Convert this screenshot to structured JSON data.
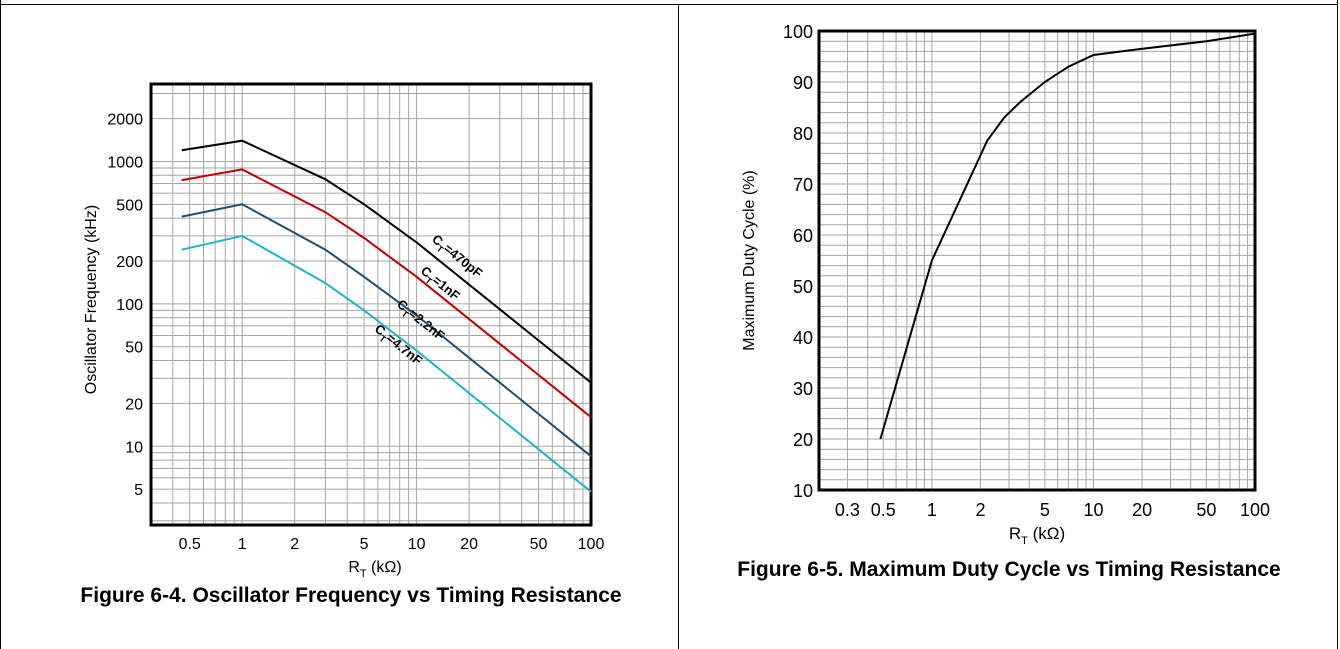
{
  "figures": [
    {
      "caption": "Figure 6-4. Oscillator Frequency vs Timing Resistance",
      "chart_data": {
        "type": "line",
        "x_scale": "log",
        "y_scale": "log",
        "xlim": [
          0.3,
          100
        ],
        "ylim": [
          2.8,
          3500
        ],
        "xticks": [
          0.5,
          1,
          2,
          5,
          10,
          20,
          50,
          100
        ],
        "xtick_labels": [
          "0.5",
          "1",
          "2",
          "5",
          "10",
          "20",
          "50",
          "100"
        ],
        "yticks": [
          5,
          10,
          20,
          50,
          100,
          200,
          500,
          1000,
          2000
        ],
        "ytick_labels": [
          "5",
          "10",
          "20",
          "50",
          "100",
          "200",
          "500",
          "1000",
          "2000"
        ],
        "xlabel": "R",
        "xlabel_sub": "T",
        "xlabel_unit": " (kΩ)",
        "ylabel": "Oscillator Frequency (kHz)",
        "grid": true,
        "series": [
          {
            "name": "CT=470pF",
            "label_prefix": "C",
            "label_sub": "T",
            "label_suffix": "=470pF",
            "color": "#000000",
            "x": [
              0.45,
              1,
              3,
              5,
              10,
              100
            ],
            "y": [
              1200,
              1400,
              750,
              500,
              270,
              28
            ]
          },
          {
            "name": "CT=1nF",
            "label_prefix": "C",
            "label_sub": "T",
            "label_suffix": "=1nF",
            "color": "#c00000",
            "x": [
              0.45,
              1,
              3,
              5,
              10,
              100
            ],
            "y": [
              740,
              880,
              440,
              290,
              155,
              16
            ]
          },
          {
            "name": "CT=2.2nF",
            "label_prefix": "C",
            "label_sub": "T",
            "label_suffix": "=2.2nF",
            "color": "#1f4e6e",
            "x": [
              0.45,
              1,
              3,
              5,
              10,
              100
            ],
            "y": [
              410,
              500,
              240,
              155,
              83,
              8.5
            ]
          },
          {
            "name": "CT=4.7nF",
            "label_prefix": "C",
            "label_sub": "T",
            "label_suffix": "=4.7nF",
            "color": "#1fb4c8",
            "x": [
              0.45,
              1,
              3,
              5,
              10,
              100
            ],
            "y": [
              240,
              300,
              140,
              90,
              47,
              4.8
            ]
          }
        ]
      }
    },
    {
      "caption": "Figure 6-5. Maximum Duty Cycle vs Timing Resistance",
      "chart_data": {
        "type": "line",
        "x_scale": "log",
        "y_scale": "linear",
        "xlim": [
          0.2,
          100
        ],
        "ylim": [
          10,
          100
        ],
        "xticks": [
          0.3,
          0.5,
          1,
          2,
          5,
          10,
          20,
          50,
          100
        ],
        "xtick_labels": [
          "0.3",
          "0.5",
          "1",
          "2",
          "5",
          "10",
          "20",
          "50",
          "100"
        ],
        "yticks": [
          10,
          20,
          30,
          40,
          50,
          60,
          70,
          80,
          90,
          100
        ],
        "ytick_labels": [
          "10",
          "20",
          "30",
          "40",
          "50",
          "60",
          "70",
          "80",
          "90",
          "100"
        ],
        "xlabel": "R",
        "xlabel_sub": "T",
        "xlabel_unit": " (kΩ)",
        "ylabel": "Maximum Duty Cycle (%)",
        "grid": true,
        "series": [
          {
            "color": "#000000",
            "x": [
              0.48,
              1,
              1.6,
              2.2,
              2.8,
              3.5,
              5,
              7,
              10,
              20,
              50,
              100
            ],
            "y": [
              20,
              55,
              69,
              78.5,
              83,
              86,
              90,
              93,
              95.3,
              96.5,
              98,
              99.5
            ]
          }
        ]
      }
    }
  ]
}
